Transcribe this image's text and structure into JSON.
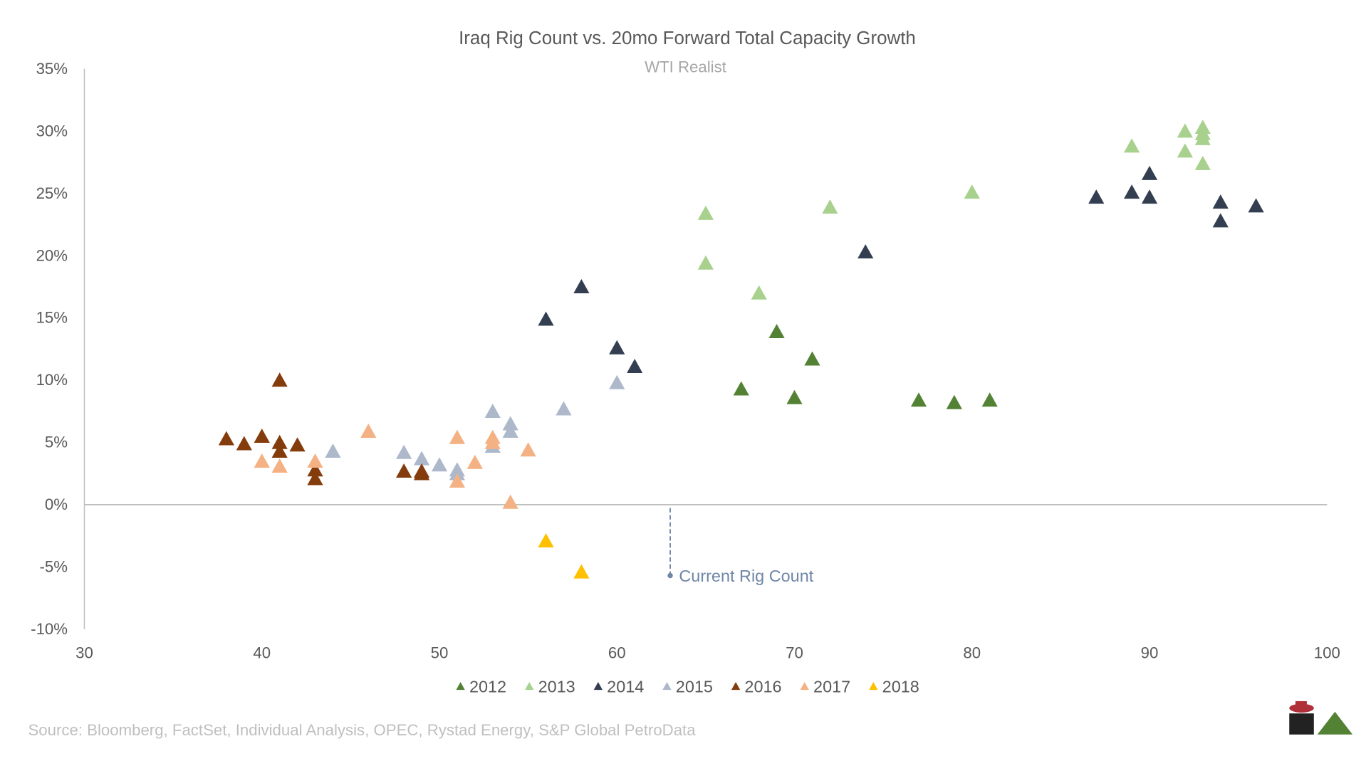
{
  "chart_data": {
    "type": "scatter",
    "title": "Iraq Rig Count vs. 20mo Forward Total Capacity Growth",
    "subtitle": "WTI Realist",
    "xlabel": "",
    "ylabel": "",
    "xlim": [
      30,
      100
    ],
    "ylim": [
      -10,
      35
    ],
    "x_ticks": [
      "30",
      "40",
      "50",
      "60",
      "70",
      "80",
      "90",
      "100"
    ],
    "y_ticks": [
      "35%",
      "30%",
      "25%",
      "20%",
      "15%",
      "10%",
      "5%",
      "0%",
      "-5%",
      "-10%"
    ],
    "legend_position": "bottom",
    "annotation": {
      "text": "Current Rig Count",
      "x": 63,
      "y_from": 0,
      "y_to": -5.7,
      "color": "#6f86a6"
    },
    "source": "Source: Bloomberg, FactSet, Individual Analysis, OPEC, Rystad Energy, S&P Global PetroData",
    "series": [
      {
        "name": "2012",
        "color": "#548235",
        "points": [
          [
            67,
            9.3
          ],
          [
            69,
            13.9
          ],
          [
            70,
            8.6
          ],
          [
            71,
            11.7
          ],
          [
            77,
            8.4
          ],
          [
            79,
            8.2
          ],
          [
            81,
            8.4
          ]
        ]
      },
      {
        "name": "2013",
        "color": "#a9d18e",
        "points": [
          [
            65,
            23.4
          ],
          [
            65,
            19.4
          ],
          [
            68,
            17.0
          ],
          [
            72,
            23.9
          ],
          [
            80,
            25.1
          ],
          [
            89,
            28.8
          ],
          [
            92,
            30.0
          ],
          [
            92,
            28.4
          ],
          [
            93,
            30.3
          ],
          [
            93,
            29.8
          ],
          [
            93,
            29.4
          ],
          [
            93,
            27.4
          ]
        ]
      },
      {
        "name": "2014",
        "color": "#333f50",
        "points": [
          [
            56,
            14.9
          ],
          [
            58,
            17.5
          ],
          [
            60,
            12.6
          ],
          [
            61,
            11.1
          ],
          [
            74,
            20.3
          ],
          [
            87,
            24.7
          ],
          [
            89,
            25.1
          ],
          [
            90,
            26.6
          ],
          [
            90,
            24.7
          ],
          [
            94,
            24.3
          ],
          [
            94,
            22.8
          ],
          [
            96,
            24.0
          ]
        ]
      },
      {
        "name": "2015",
        "color": "#adb9ca",
        "points": [
          [
            44,
            4.3
          ],
          [
            48,
            4.2
          ],
          [
            49,
            3.7
          ],
          [
            50,
            3.2
          ],
          [
            51,
            2.8
          ],
          [
            51,
            2.5
          ],
          [
            53,
            7.5
          ],
          [
            53,
            4.7
          ],
          [
            54,
            6.5
          ],
          [
            54,
            5.9
          ],
          [
            57,
            7.7
          ],
          [
            60,
            9.8
          ]
        ]
      },
      {
        "name": "2016",
        "color": "#843c0c",
        "points": [
          [
            38,
            5.3
          ],
          [
            39,
            4.9
          ],
          [
            40,
            5.5
          ],
          [
            41,
            10.0
          ],
          [
            41,
            5.0
          ],
          [
            41,
            4.3
          ],
          [
            42,
            4.8
          ],
          [
            43,
            2.8
          ],
          [
            43,
            2.1
          ],
          [
            48,
            2.7
          ],
          [
            49,
            2.7
          ],
          [
            49,
            2.5
          ]
        ]
      },
      {
        "name": "2017",
        "color": "#f4b183",
        "points": [
          [
            40,
            3.5
          ],
          [
            41,
            3.1
          ],
          [
            43,
            3.5
          ],
          [
            46,
            5.9
          ],
          [
            51,
            5.4
          ],
          [
            51,
            1.9
          ],
          [
            52,
            3.4
          ],
          [
            53,
            5.4
          ],
          [
            53,
            5.0
          ],
          [
            54,
            0.2
          ],
          [
            55,
            4.4
          ]
        ]
      },
      {
        "name": "2018",
        "color": "#ffc000",
        "points": [
          [
            56,
            -2.9
          ],
          [
            58,
            -5.4
          ]
        ]
      }
    ]
  }
}
